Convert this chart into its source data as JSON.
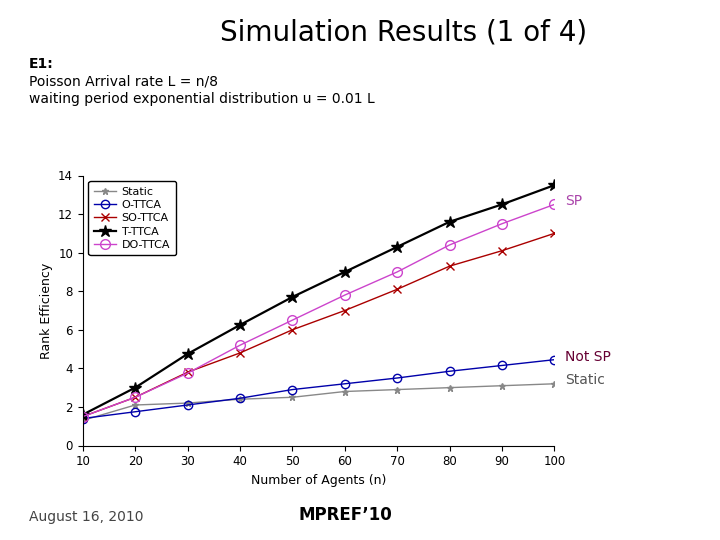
{
  "title": "Simulation Results (1 of 4)",
  "subtitle_bold": "E1",
  "subtitle_line2": "Poisson Arrival rate L = n/8",
  "subtitle_line3": "waiting period exponential distribution u = 0.01 L",
  "xlabel": "Number of Agents (n)",
  "ylabel": "Rank Efficiency",
  "footer_left": "August 16, 2010",
  "footer_center": "MPREF’10",
  "xlim": [
    10,
    100
  ],
  "ylim": [
    0,
    14
  ],
  "xticks": [
    10,
    20,
    30,
    40,
    50,
    60,
    70,
    80,
    90,
    100
  ],
  "yticks": [
    0,
    2,
    4,
    6,
    8,
    10,
    12,
    14
  ],
  "n_values": [
    10,
    20,
    30,
    40,
    50,
    60,
    70,
    80,
    90,
    100
  ],
  "static": [
    1.3,
    2.1,
    2.2,
    2.4,
    2.5,
    2.8,
    2.9,
    3.0,
    3.1,
    3.2
  ],
  "o_ttca": [
    1.4,
    1.75,
    2.1,
    2.45,
    2.9,
    3.2,
    3.5,
    3.85,
    4.15,
    4.45
  ],
  "so_ttca": [
    1.5,
    2.5,
    3.8,
    4.8,
    6.0,
    7.0,
    8.1,
    9.3,
    10.1,
    11.0
  ],
  "t_ttca": [
    1.6,
    3.0,
    4.75,
    6.25,
    7.7,
    9.0,
    10.3,
    11.6,
    12.5,
    13.5
  ],
  "do_ttca": [
    1.5,
    2.5,
    3.75,
    5.2,
    6.5,
    7.8,
    9.0,
    10.4,
    11.5,
    12.5
  ],
  "static_color": "#888888",
  "o_ttca_color": "#0000aa",
  "so_ttca_color": "#aa0000",
  "t_ttca_color": "#000000",
  "do_ttca_color": "#cc44cc",
  "ann_sp_color": "#aa44aa",
  "ann_notsp_color": "#660033",
  "ann_static_color": "#555555",
  "background_color": "#ffffff"
}
